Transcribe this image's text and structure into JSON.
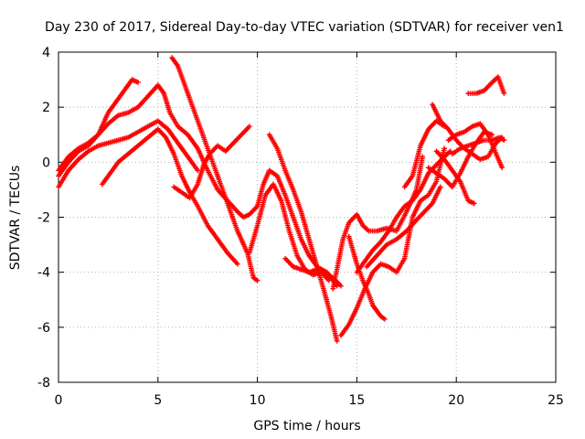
{
  "chart_data": {
    "type": "scatter",
    "title": "Day 230 of 2017, Sidereal Day-to-day VTEC variation (SDTVAR) for receiver ven1",
    "xlabel": "GPS time / hours",
    "ylabel": "SDTVAR / TECUs",
    "xlim": [
      0,
      25
    ],
    "ylim": [
      -8,
      4
    ],
    "xticks": [
      "0",
      "5",
      "10",
      "15",
      "20",
      "25"
    ],
    "yticks": [
      "-8",
      "-6",
      "-4",
      "-2",
      "0",
      "2",
      "4"
    ],
    "grid": true,
    "marker": "+",
    "color": "#ff0000",
    "series": [
      {
        "x": [
          0.0,
          0.5,
          1.0,
          1.5,
          2.0,
          2.5,
          3.0,
          3.4,
          3.7,
          4.0
        ],
        "y": [
          -0.3,
          0.2,
          0.5,
          0.7,
          1.0,
          1.8,
          2.3,
          2.7,
          3.0,
          2.9
        ]
      },
      {
        "x": [
          0.0,
          0.5,
          1.0,
          1.5,
          2.0,
          2.5,
          3.0,
          3.5,
          4.0,
          4.5,
          5.0,
          5.3,
          5.6,
          6.0,
          6.5,
          7.0,
          7.5,
          8.0,
          8.5,
          9.0,
          9.3,
          9.6,
          10.0
        ],
        "y": [
          -0.5,
          0.0,
          0.4,
          0.6,
          1.0,
          1.4,
          1.7,
          1.8,
          2.0,
          2.4,
          2.8,
          2.5,
          1.8,
          1.3,
          1.0,
          0.5,
          -0.3,
          -1.0,
          -1.4,
          -1.8,
          -2.0,
          -1.9,
          -1.6
        ]
      },
      {
        "x": [
          5.7,
          6.0,
          6.5,
          7.0,
          7.5,
          8.0,
          8.5,
          9.0,
          9.5,
          9.8,
          10.0
        ],
        "y": [
          3.8,
          3.5,
          2.5,
          1.5,
          0.5,
          -0.5,
          -1.5,
          -2.5,
          -3.3,
          -4.2,
          -4.3
        ]
      },
      {
        "x": [
          0.0,
          0.5,
          1.0,
          1.5,
          2.0,
          2.5,
          3.0,
          3.5,
          4.0,
          4.5,
          5.0,
          5.5,
          6.0,
          6.3,
          6.6,
          7.0
        ],
        "y": [
          -0.9,
          -0.3,
          0.1,
          0.4,
          0.6,
          0.7,
          0.8,
          0.9,
          1.1,
          1.3,
          1.5,
          1.2,
          0.7,
          0.4,
          0.1,
          -0.3
        ]
      },
      {
        "x": [
          2.2,
          2.6,
          3.0,
          3.5,
          4.0,
          4.5,
          5.0,
          5.4,
          5.8,
          6.2,
          6.6,
          7.0,
          7.5,
          8.0,
          8.5,
          9.0
        ],
        "y": [
          -0.8,
          -0.4,
          0.0,
          0.3,
          0.6,
          0.9,
          1.2,
          0.9,
          0.3,
          -0.5,
          -1.1,
          -1.6,
          -2.3,
          -2.8,
          -3.3,
          -3.7
        ]
      },
      {
        "x": [
          5.8,
          6.2,
          6.6,
          7.0,
          7.3,
          7.6,
          8.0,
          8.4,
          8.8,
          9.2,
          9.6
        ],
        "y": [
          -0.9,
          -1.1,
          -1.3,
          -0.8,
          -0.1,
          0.3,
          0.6,
          0.4,
          0.7,
          1.0,
          1.3
        ]
      },
      {
        "x": [
          10.0,
          10.3,
          10.6,
          11.0,
          11.4,
          11.8,
          12.2,
          12.6,
          13.0,
          13.5,
          14.0
        ],
        "y": [
          -1.6,
          -0.8,
          -0.3,
          -0.5,
          -1.2,
          -2.0,
          -2.8,
          -3.4,
          -3.8,
          -4.0,
          -4.5
        ]
      },
      {
        "x": [
          10.6,
          11.0,
          11.4,
          11.8,
          12.2,
          12.6,
          13.0,
          13.4,
          13.7,
          14.0
        ],
        "y": [
          1.0,
          0.5,
          -0.3,
          -1.0,
          -1.8,
          -2.8,
          -3.8,
          -4.8,
          -5.6,
          -6.5
        ]
      },
      {
        "x": [
          9.6,
          10.0,
          10.4,
          10.8,
          11.2,
          11.6,
          12.0,
          12.4,
          12.8,
          13.2,
          13.6
        ],
        "y": [
          -3.3,
          -2.3,
          -1.2,
          -0.8,
          -1.4,
          -2.5,
          -3.4,
          -3.9,
          -4.1,
          -4.0,
          -4.3
        ]
      },
      {
        "x": [
          11.4,
          11.8,
          12.2,
          12.6,
          13.0,
          13.4,
          13.8,
          14.2
        ],
        "y": [
          -3.5,
          -3.8,
          -3.9,
          -4.0,
          -3.9,
          -4.0,
          -4.2,
          -4.5
        ]
      },
      {
        "x": [
          13.8,
          14.0,
          14.3,
          14.6,
          15.0,
          15.3,
          15.6,
          16.0,
          16.5,
          17.0,
          17.5,
          18.0,
          18.3
        ],
        "y": [
          -4.6,
          -3.9,
          -2.8,
          -2.2,
          -1.9,
          -2.3,
          -2.5,
          -2.5,
          -2.4,
          -2.5,
          -1.8,
          -1.0,
          0.2
        ]
      },
      {
        "x": [
          14.6,
          15.0,
          15.3,
          15.6,
          15.8,
          16.0,
          16.2,
          16.4
        ],
        "y": [
          -2.7,
          -3.7,
          -4.3,
          -4.8,
          -5.2,
          -5.4,
          -5.6,
          -5.7
        ]
      },
      {
        "x": [
          15.0,
          15.4,
          15.8,
          16.2,
          16.6,
          17.0,
          17.4,
          17.8,
          18.2,
          18.6,
          19.0,
          19.4,
          19.7
        ],
        "y": [
          -4.0,
          -3.6,
          -3.2,
          -2.9,
          -2.5,
          -2.0,
          -1.6,
          -1.4,
          -1.0,
          -0.4,
          -0.1,
          0.2,
          0.4
        ]
      },
      {
        "x": [
          14.2,
          14.6,
          15.0,
          15.4,
          15.8,
          16.2,
          16.6,
          17.0,
          17.4,
          17.8,
          18.2,
          18.6,
          19.0,
          19.4
        ],
        "y": [
          -6.3,
          -5.9,
          -5.3,
          -4.6,
          -4.0,
          -3.7,
          -3.8,
          -4.0,
          -3.5,
          -2.0,
          -1.4,
          -1.2,
          -0.7,
          0.5
        ]
      },
      {
        "x": [
          15.5,
          16.0,
          16.5,
          17.0,
          17.5,
          18.0,
          18.4,
          18.8,
          19.2
        ],
        "y": [
          -3.8,
          -3.4,
          -3.0,
          -2.8,
          -2.5,
          -2.1,
          -1.8,
          -1.5,
          -0.9
        ]
      },
      {
        "x": [
          17.4,
          17.8,
          18.2,
          18.6,
          19.0,
          19.4
        ],
        "y": [
          -0.9,
          -0.5,
          0.6,
          1.2,
          1.5,
          1.3
        ]
      },
      {
        "x": [
          18.6,
          19.0,
          19.4,
          19.8,
          20.2,
          20.6,
          21.0,
          21.4,
          21.8
        ],
        "y": [
          -0.2,
          -0.4,
          -0.6,
          -0.9,
          -0.4,
          0.2,
          0.7,
          1.1,
          1.0
        ]
      },
      {
        "x": [
          18.8,
          19.2,
          19.6,
          20.0,
          20.4,
          20.8,
          21.2,
          21.6,
          22.0,
          22.3
        ],
        "y": [
          2.1,
          1.5,
          1.2,
          0.8,
          0.5,
          0.3,
          0.1,
          0.2,
          0.7,
          0.9
        ]
      },
      {
        "x": [
          19.0,
          19.4,
          19.8,
          20.2,
          20.6,
          20.9
        ],
        "y": [
          0.4,
          0.1,
          -0.3,
          -0.7,
          -1.4,
          -1.5
        ]
      },
      {
        "x": [
          19.6,
          20.0,
          20.4,
          20.8,
          21.2,
          21.6,
          22.0,
          22.3
        ],
        "y": [
          0.8,
          1.0,
          1.1,
          1.3,
          1.4,
          1.0,
          0.3,
          -0.2
        ]
      },
      {
        "x": [
          19.8,
          20.2,
          20.6,
          21.0,
          21.4,
          21.8,
          22.2,
          22.4
        ],
        "y": [
          0.3,
          0.5,
          0.6,
          0.7,
          0.8,
          0.8,
          0.9,
          0.8
        ]
      },
      {
        "x": [
          20.6,
          21.0,
          21.4,
          21.8,
          22.1,
          22.4
        ],
        "y": [
          2.5,
          2.5,
          2.6,
          2.9,
          3.1,
          2.5
        ]
      }
    ]
  }
}
